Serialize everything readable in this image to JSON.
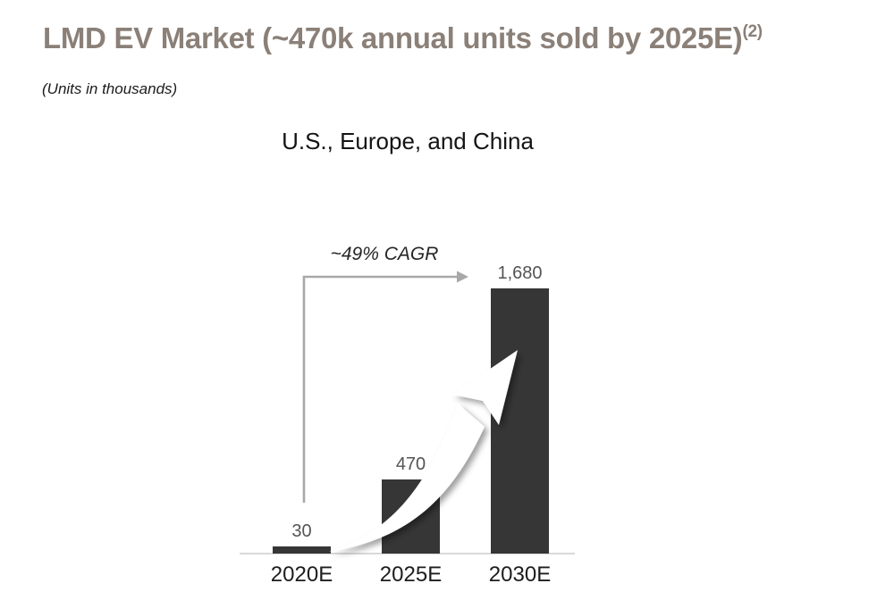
{
  "page": {
    "title_main": "LMD EV Market (~470k annual units sold by 2025E)",
    "title_superscript": "(2)",
    "title_color": "#8b8078",
    "units_note": "(Units in thousands)"
  },
  "chart_data": {
    "type": "bar",
    "title": "U.S., Europe, and China",
    "categories": [
      "2020E",
      "2025E",
      "2030E"
    ],
    "values": [
      30,
      470,
      1680
    ],
    "value_labels": [
      "30",
      "470",
      "1,680"
    ],
    "ylabel": "Units in thousands",
    "ylim": [
      0,
      1680
    ],
    "grid": false,
    "legend": false,
    "bar_color": "#363636",
    "axis_line_color": "#d9d9d9",
    "value_label_color": "#545454",
    "x_label_color": "#1d1d1d",
    "annotation": {
      "text": "~49% CAGR",
      "bracket_color": "#a8a8a8",
      "growth_arrow_fill": "#ffffff"
    }
  }
}
